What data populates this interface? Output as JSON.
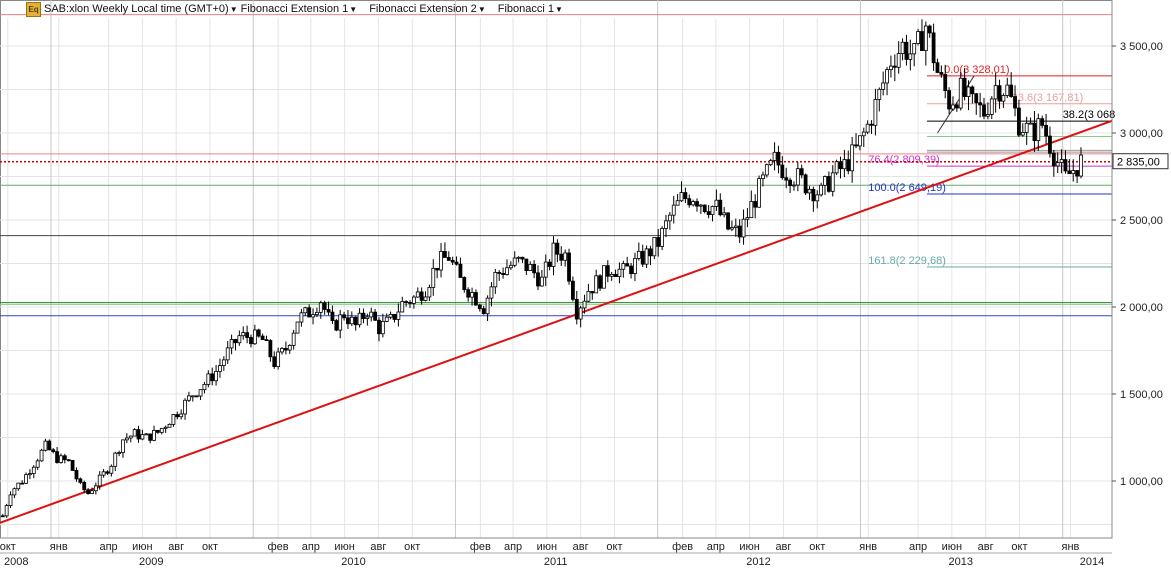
{
  "toolbar": {
    "logo_text": "Eq",
    "symbol": "SAB:xlon Weekly Local time (GMT+0)",
    "indicators": [
      "Fibonacci Extension 1",
      "Fibonacci Extension 2",
      "Fibonacci 1"
    ]
  },
  "chart_data": {
    "type": "candlestick",
    "title": "SAB:xlon Weekly",
    "x_range": [
      "2008-10-01",
      "2014-03-31"
    ],
    "ylim": [
      700,
      3700
    ],
    "y_ticks": [
      1000,
      1500,
      2000,
      2500,
      3000,
      3500
    ],
    "y_tick_labels": [
      "1 000,00",
      "1 500,00",
      "2 000,00",
      "2 500,00",
      "3 000,00",
      "3 500,00"
    ],
    "last_price": 2835.0,
    "last_price_label": "2 835,00",
    "month_labels": [
      {
        "date": "2008-10-15",
        "label": "окт"
      },
      {
        "date": "2009-01-15",
        "label": "янв"
      },
      {
        "date": "2009-04-15",
        "label": "апр"
      },
      {
        "date": "2009-06-15",
        "label": "июн"
      },
      {
        "date": "2009-08-15",
        "label": "авг"
      },
      {
        "date": "2009-10-15",
        "label": "окт"
      },
      {
        "date": "2010-02-15",
        "label": "фев"
      },
      {
        "date": "2010-04-15",
        "label": "апр"
      },
      {
        "date": "2010-06-15",
        "label": "июн"
      },
      {
        "date": "2010-08-15",
        "label": "авг"
      },
      {
        "date": "2010-10-15",
        "label": "окт"
      },
      {
        "date": "2011-02-15",
        "label": "фев"
      },
      {
        "date": "2011-04-15",
        "label": "апр"
      },
      {
        "date": "2011-06-15",
        "label": "июн"
      },
      {
        "date": "2011-08-15",
        "label": "авг"
      },
      {
        "date": "2011-10-15",
        "label": "окт"
      },
      {
        "date": "2012-02-15",
        "label": "фев"
      },
      {
        "date": "2012-04-15",
        "label": "апр"
      },
      {
        "date": "2012-06-15",
        "label": "июн"
      },
      {
        "date": "2012-08-15",
        "label": "авг"
      },
      {
        "date": "2012-10-15",
        "label": "окт"
      },
      {
        "date": "2013-01-15",
        "label": "янв"
      },
      {
        "date": "2013-04-15",
        "label": "апр"
      },
      {
        "date": "2013-06-15",
        "label": "июн"
      },
      {
        "date": "2013-08-15",
        "label": "авг"
      },
      {
        "date": "2013-10-15",
        "label": "окт"
      },
      {
        "date": "2014-01-15",
        "label": "янв"
      }
    ],
    "year_labels": [
      {
        "date": "2008-10-01",
        "label": "2008"
      },
      {
        "date": "2009-07-01",
        "label": "2009"
      },
      {
        "date": "2010-07-01",
        "label": "2010"
      },
      {
        "date": "2011-07-01",
        "label": "2011"
      },
      {
        "date": "2012-07-01",
        "label": "2012"
      },
      {
        "date": "2013-07-01",
        "label": "2013"
      },
      {
        "date": "2014-03-01",
        "label": "2014"
      }
    ],
    "year_boundaries": [
      "2009-01-01",
      "2010-01-01",
      "2011-01-01",
      "2012-01-01",
      "2013-01-01",
      "2014-01-01"
    ],
    "horizontal_levels": [
      {
        "value": 3680,
        "color": "#f08080"
      },
      {
        "value": 2880,
        "color": "#f08080"
      },
      {
        "value": 2700,
        "color": "#66aa66"
      },
      {
        "value": 2410,
        "color": "#444444"
      },
      {
        "value": 2025,
        "color": "#228822"
      },
      {
        "value": 2015,
        "color": "#88cc88"
      },
      {
        "value": 1950,
        "color": "#3344cc"
      }
    ],
    "fib_levels": [
      {
        "value": 3328.01,
        "label": "0.0(3 328,01)",
        "color": "#dd2222",
        "label_date": "2013-06-01"
      },
      {
        "value": 3167.81,
        "label": "23.6(3 167,81)",
        "color": "#e8a0a0",
        "label_date": "2013-10-01"
      },
      {
        "value": 3068.0,
        "label": "38.2(3 068",
        "color": "#000000",
        "label_date": "2014-01-01"
      },
      {
        "value": 2809.39,
        "label": "76.4(2 809,39)",
        "color": "#cc33cc",
        "label_date": "2013-01-15"
      },
      {
        "value": 2649.19,
        "label": "100.0(2 649,19)",
        "color": "#2233cc",
        "label_date": "2013-01-15"
      },
      {
        "value": 2229.68,
        "label": "161.8(2 229,68)",
        "color": "#66aaaa",
        "label_date": "2013-01-15"
      }
    ],
    "extra_fib_lines": [
      {
        "value": 2980,
        "color": "#88cc88"
      },
      {
        "value": 2900,
        "color": "#999999"
      },
      {
        "value": 2890,
        "color": "#999999"
      }
    ],
    "trendline": {
      "start": {
        "date": "2008-10-01",
        "value": 760
      },
      "end": {
        "date": "2014-03-31",
        "value": 3070
      },
      "color": "#dd1111"
    },
    "fib_swing": [
      {
        "date": "2013-05-20",
        "value": 3000
      },
      {
        "date": "2013-07-25",
        "value": 3328.01
      }
    ],
    "weekly_closes": [
      {
        "date": "2008-10-06",
        "value": 800
      },
      {
        "date": "2008-10-20",
        "value": 940
      },
      {
        "date": "2008-11-10",
        "value": 1000
      },
      {
        "date": "2008-12-01",
        "value": 1100
      },
      {
        "date": "2008-12-22",
        "value": 1200
      },
      {
        "date": "2009-01-12",
        "value": 1130
      },
      {
        "date": "2009-02-02",
        "value": 1110
      },
      {
        "date": "2009-02-23",
        "value": 970
      },
      {
        "date": "2009-03-09",
        "value": 930
      },
      {
        "date": "2009-03-30",
        "value": 1010
      },
      {
        "date": "2009-04-20",
        "value": 1100
      },
      {
        "date": "2009-05-11",
        "value": 1240
      },
      {
        "date": "2009-06-01",
        "value": 1270
      },
      {
        "date": "2009-06-22",
        "value": 1250
      },
      {
        "date": "2009-07-13",
        "value": 1280
      },
      {
        "date": "2009-08-03",
        "value": 1350
      },
      {
        "date": "2009-08-24",
        "value": 1420
      },
      {
        "date": "2009-09-14",
        "value": 1500
      },
      {
        "date": "2009-10-05",
        "value": 1560
      },
      {
        "date": "2009-10-26",
        "value": 1630
      },
      {
        "date": "2009-11-16",
        "value": 1740
      },
      {
        "date": "2009-12-07",
        "value": 1830
      },
      {
        "date": "2009-12-28",
        "value": 1830
      },
      {
        "date": "2010-01-18",
        "value": 1810
      },
      {
        "date": "2010-02-08",
        "value": 1680
      },
      {
        "date": "2010-03-01",
        "value": 1760
      },
      {
        "date": "2010-03-22",
        "value": 1930
      },
      {
        "date": "2010-04-12",
        "value": 1970
      },
      {
        "date": "2010-05-03",
        "value": 2040
      },
      {
        "date": "2010-05-24",
        "value": 1880
      },
      {
        "date": "2010-06-14",
        "value": 1960
      },
      {
        "date": "2010-07-05",
        "value": 1890
      },
      {
        "date": "2010-07-26",
        "value": 1980
      },
      {
        "date": "2010-08-16",
        "value": 1880
      },
      {
        "date": "2010-09-06",
        "value": 1920
      },
      {
        "date": "2010-09-27",
        "value": 2020
      },
      {
        "date": "2010-10-18",
        "value": 2050
      },
      {
        "date": "2010-11-08",
        "value": 2110
      },
      {
        "date": "2010-11-29",
        "value": 2250
      },
      {
        "date": "2010-12-20",
        "value": 2290
      },
      {
        "date": "2011-01-10",
        "value": 2150
      },
      {
        "date": "2011-01-31",
        "value": 2080
      },
      {
        "date": "2011-02-21",
        "value": 2000
      },
      {
        "date": "2011-03-14",
        "value": 2180
      },
      {
        "date": "2011-04-04",
        "value": 2230
      },
      {
        "date": "2011-04-25",
        "value": 2260
      },
      {
        "date": "2011-05-16",
        "value": 2220
      },
      {
        "date": "2011-06-06",
        "value": 2150
      },
      {
        "date": "2011-06-27",
        "value": 2320
      },
      {
        "date": "2011-07-18",
        "value": 2300
      },
      {
        "date": "2011-08-08",
        "value": 1980
      },
      {
        "date": "2011-08-29",
        "value": 2100
      },
      {
        "date": "2011-09-19",
        "value": 2160
      },
      {
        "date": "2011-10-10",
        "value": 2230
      },
      {
        "date": "2011-10-31",
        "value": 2200
      },
      {
        "date": "2011-11-21",
        "value": 2250
      },
      {
        "date": "2011-12-12",
        "value": 2300
      },
      {
        "date": "2012-01-02",
        "value": 2370
      },
      {
        "date": "2012-01-23",
        "value": 2520
      },
      {
        "date": "2012-02-13",
        "value": 2620
      },
      {
        "date": "2012-03-05",
        "value": 2640
      },
      {
        "date": "2012-03-26",
        "value": 2590
      },
      {
        "date": "2012-04-16",
        "value": 2570
      },
      {
        "date": "2012-05-07",
        "value": 2450
      },
      {
        "date": "2012-05-28",
        "value": 2420
      },
      {
        "date": "2012-06-18",
        "value": 2580
      },
      {
        "date": "2012-07-09",
        "value": 2720
      },
      {
        "date": "2012-07-30",
        "value": 2840
      },
      {
        "date": "2012-08-20",
        "value": 2780
      },
      {
        "date": "2012-09-10",
        "value": 2740
      },
      {
        "date": "2012-10-01",
        "value": 2690
      },
      {
        "date": "2012-10-22",
        "value": 2650
      },
      {
        "date": "2012-11-12",
        "value": 2760
      },
      {
        "date": "2012-12-03",
        "value": 2810
      },
      {
        "date": "2012-12-24",
        "value": 2900
      },
      {
        "date": "2013-01-14",
        "value": 3040
      },
      {
        "date": "2013-02-04",
        "value": 3220
      },
      {
        "date": "2013-02-25",
        "value": 3420
      },
      {
        "date": "2013-03-18",
        "value": 3500
      },
      {
        "date": "2013-04-08",
        "value": 3440
      },
      {
        "date": "2013-04-29",
        "value": 3620
      },
      {
        "date": "2013-05-20",
        "value": 3350
      },
      {
        "date": "2013-06-10",
        "value": 3180
      },
      {
        "date": "2013-07-01",
        "value": 3240
      },
      {
        "date": "2013-07-22",
        "value": 3160
      },
      {
        "date": "2013-08-12",
        "value": 3120
      },
      {
        "date": "2013-09-02",
        "value": 3270
      },
      {
        "date": "2013-09-23",
        "value": 3250
      },
      {
        "date": "2013-10-14",
        "value": 3060
      },
      {
        "date": "2013-11-04",
        "value": 3000
      },
      {
        "date": "2013-11-25",
        "value": 3050
      },
      {
        "date": "2013-12-16",
        "value": 2880
      },
      {
        "date": "2014-01-06",
        "value": 2740
      },
      {
        "date": "2014-01-20",
        "value": 2790
      },
      {
        "date": "2014-02-03",
        "value": 2835
      }
    ],
    "grid": true,
    "legend": "none"
  }
}
